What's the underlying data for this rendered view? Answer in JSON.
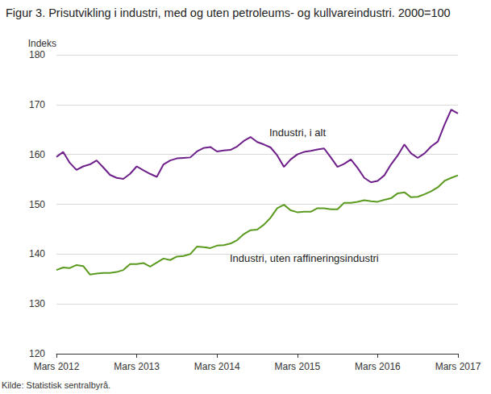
{
  "chart_data": {
    "type": "line",
    "title": "Figur 3. Prisutvikling i industri, med og uten petroleums- og kullvareindustri. 2000=100",
    "y_label": "Indeks",
    "source": "Kilde: Statistisk sentralbyrå.",
    "categories": [
      "Mars 2012",
      null,
      null,
      null,
      null,
      null,
      null,
      null,
      null,
      null,
      null,
      null,
      "Mars 2013",
      null,
      null,
      null,
      null,
      null,
      null,
      null,
      null,
      null,
      null,
      null,
      "Mars 2014",
      null,
      null,
      null,
      null,
      null,
      null,
      null,
      null,
      null,
      null,
      null,
      "Mars 2015",
      null,
      null,
      null,
      null,
      null,
      null,
      null,
      null,
      null,
      null,
      null,
      "Mars 2016",
      null,
      null,
      null,
      null,
      null,
      null,
      null,
      null,
      null,
      null,
      null,
      "Mars 2017"
    ],
    "series": [
      {
        "name": "Industri, i alt",
        "color": "#6e1f8a",
        "values": [
          159.5,
          160.5,
          158.3,
          156.9,
          157.6,
          158,
          158.8,
          157.4,
          155.9,
          155.3,
          155.1,
          156.1,
          157.6,
          156.8,
          156.1,
          155.5,
          158,
          158.8,
          159.2,
          159.3,
          159.4,
          160.6,
          161.3,
          161.5,
          160.6,
          160.8,
          160.9,
          161.6,
          162.7,
          163.5,
          162.5,
          162,
          161.4,
          159.8,
          157.5,
          159,
          160,
          160.5,
          160.7,
          161,
          161.2,
          159.4,
          157.5,
          158.1,
          159,
          157.3,
          155.3,
          154.4,
          154.7,
          155.8,
          158,
          159.8,
          162,
          160.2,
          159.3,
          160.2,
          161.6,
          162.6,
          166,
          169,
          168.2
        ]
      },
      {
        "name": "Industri, uten raffineringsindustri",
        "color": "#5a9a1e",
        "values": [
          136.8,
          137.3,
          137.2,
          137.8,
          137.6,
          135.9,
          136.1,
          136.2,
          136.2,
          136.4,
          136.8,
          138,
          138,
          138.2,
          137.5,
          138.3,
          139.1,
          138.8,
          139.5,
          139.6,
          140,
          141.5,
          141.4,
          141.2,
          141.7,
          141.8,
          142.1,
          142.8,
          144,
          144.8,
          144.9,
          145.9,
          147.3,
          149.2,
          149.9,
          148.8,
          148.4,
          148.5,
          148.5,
          149.2,
          149.2,
          149,
          149,
          150.3,
          150.3,
          150.5,
          150.8,
          150.6,
          150.5,
          150.9,
          151.2,
          152.2,
          152.4,
          151.4,
          151.5,
          152,
          152.6,
          153.4,
          154.7,
          155.3,
          155.8
        ]
      }
    ],
    "ylim": [
      120,
      180
    ],
    "yticks": [
      120,
      130,
      140,
      150,
      160,
      170,
      180
    ],
    "grid": true,
    "legend": false
  }
}
